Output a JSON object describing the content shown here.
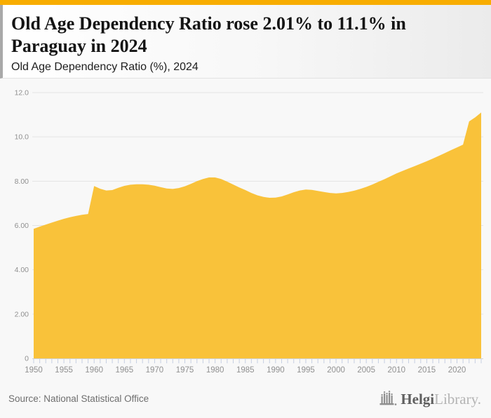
{
  "topbar": {
    "accent_color": "#F8AD00"
  },
  "header": {
    "title": "Old Age Dependency Ratio rose 2.01% to 11.1% in Paraguay in 2024",
    "subtitle": "Old Age Dependency Ratio (%), 2024"
  },
  "footer": {
    "source": "Source: National Statistical Office",
    "logo": {
      "brand_dark": "Helgi",
      "brand_light": "Library."
    }
  },
  "chart_data": {
    "type": "area",
    "title": "Old Age Dependency Ratio rose 2.01% to 11.1% in Paraguay in 2024",
    "subtitle": "Old Age Dependency Ratio (%), 2024",
    "series_name": "Old Age Dependency Ratio (%)",
    "x_start": 1950,
    "x_end": 2024,
    "x": [
      1950,
      1951,
      1952,
      1953,
      1954,
      1955,
      1956,
      1957,
      1958,
      1959,
      1960,
      1961,
      1962,
      1963,
      1964,
      1965,
      1966,
      1967,
      1968,
      1969,
      1970,
      1971,
      1972,
      1973,
      1974,
      1975,
      1976,
      1977,
      1978,
      1979,
      1980,
      1981,
      1982,
      1983,
      1984,
      1985,
      1986,
      1987,
      1988,
      1989,
      1990,
      1991,
      1992,
      1993,
      1994,
      1995,
      1996,
      1997,
      1998,
      1999,
      2000,
      2001,
      2002,
      2003,
      2004,
      2005,
      2006,
      2007,
      2008,
      2009,
      2010,
      2011,
      2012,
      2013,
      2014,
      2015,
      2016,
      2017,
      2018,
      2019,
      2020,
      2021,
      2022,
      2023,
      2024
    ],
    "values": [
      5.85,
      5.95,
      6.04,
      6.13,
      6.22,
      6.3,
      6.37,
      6.43,
      6.48,
      6.52,
      7.78,
      7.66,
      7.58,
      7.6,
      7.7,
      7.79,
      7.84,
      7.86,
      7.86,
      7.84,
      7.8,
      7.73,
      7.67,
      7.65,
      7.69,
      7.77,
      7.88,
      8.0,
      8.1,
      8.17,
      8.17,
      8.1,
      7.98,
      7.85,
      7.72,
      7.6,
      7.47,
      7.36,
      7.29,
      7.25,
      7.26,
      7.31,
      7.4,
      7.5,
      7.58,
      7.62,
      7.61,
      7.56,
      7.51,
      7.47,
      7.45,
      7.47,
      7.51,
      7.57,
      7.65,
      7.74,
      7.85,
      7.97,
      8.09,
      8.22,
      8.35,
      8.46,
      8.57,
      8.68,
      8.79,
      8.9,
      9.02,
      9.14,
      9.27,
      9.4,
      9.52,
      9.65,
      10.7,
      10.88,
      11.1
    ],
    "ylim": [
      0,
      12
    ],
    "yticks": [
      0,
      2,
      4,
      6,
      8,
      10,
      12
    ],
    "ytick_labels": [
      "0",
      "2.00",
      "4.00",
      "6.00",
      "8.00",
      "10.0",
      "12.0"
    ],
    "xticks": [
      1950,
      1955,
      1960,
      1965,
      1970,
      1975,
      1980,
      1985,
      1990,
      1995,
      2000,
      2005,
      2010,
      2015,
      2020
    ],
    "xlabel": "",
    "ylabel": "",
    "grid": true,
    "legend": false,
    "area_color": "#F9C23A",
    "grid_color": "#e4e4e4",
    "axis_color": "#d2d2d2",
    "tick_color": "#c6cfe2",
    "label_color": "#909090"
  }
}
